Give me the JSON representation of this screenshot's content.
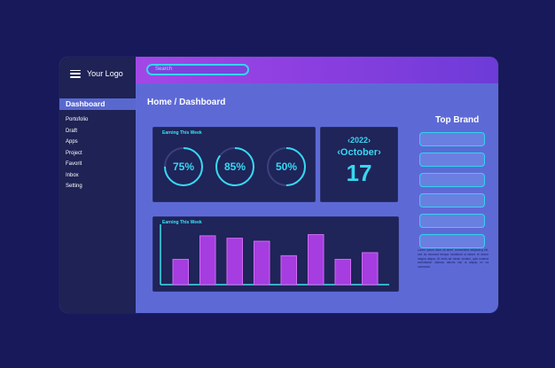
{
  "app": {
    "logo_text": "Your Logo"
  },
  "search": {
    "placeholder": "Search"
  },
  "sidebar": {
    "active_item": "Dashboard",
    "items": [
      "Portofolio",
      "Draft",
      "Apps",
      "Project",
      "Favorit",
      "Inbox",
      "Setting"
    ]
  },
  "breadcrumb": "Home / Dashboard",
  "earning": {
    "title": "Earning This Week",
    "gauges": [
      {
        "label": "75%",
        "value": 0.75
      },
      {
        "label": "85%",
        "value": 0.85
      },
      {
        "label": "50%",
        "value": 0.5
      }
    ]
  },
  "date": {
    "year": "2022",
    "month": "October",
    "day": "17"
  },
  "chart_data": {
    "type": "bar",
    "title": "Earning This Week",
    "xlabel": "",
    "ylabel": "",
    "ylim": [
      0,
      100
    ],
    "values": [
      42,
      81,
      77,
      72,
      48,
      83,
      42,
      53
    ],
    "colors": {
      "bar": "#a53de0",
      "bar_border": "#cf6cf0",
      "axis": "#3fdfe9"
    }
  },
  "top_brand": {
    "title": "Top Brand",
    "count": 6,
    "body_text": "Lorem ipsum dolor sit amet, consectetur adipiscing elit, sed do eiusmod tempor incididunt ut labore et dolore magna aliqua. Ut enim ad minim veniam, quis nostrud exercitation ullamco laboris nisi ut aliquip ex ea commodo."
  },
  "colors": {
    "background": "#17195a",
    "sidebar": "#1e2254",
    "main": "#5d6ad6",
    "accent": "#37d9f2",
    "topbar": "#a347e6"
  },
  "icons": {
    "menu": "hamburger-menu-icon"
  }
}
